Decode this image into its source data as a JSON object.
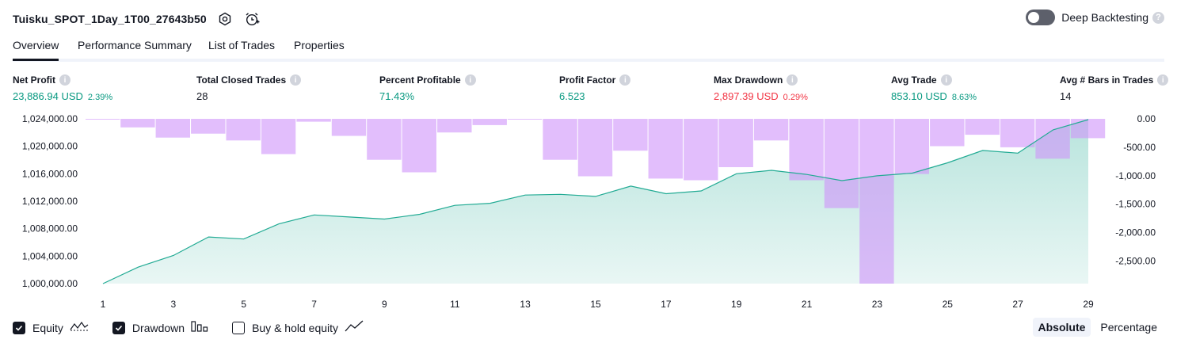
{
  "header": {
    "strategy_name": "Tuisku_SPOT_1Day_1T00_27643b50",
    "settings_icon": "gear-icon",
    "alert_icon": "alarm-clock-plus-icon",
    "deep_backtesting_label": "Deep Backtesting",
    "deep_backtesting_enabled": false
  },
  "tabs": [
    {
      "label": "Overview",
      "active": true
    },
    {
      "label": "Performance Summary",
      "active": false
    },
    {
      "label": "List of Trades",
      "active": false
    },
    {
      "label": "Properties",
      "active": false
    }
  ],
  "metrics": [
    {
      "label": "Net Profit",
      "value": "23,886.94 USD",
      "pct": "2.39%",
      "tone": "pos"
    },
    {
      "label": "Total Closed Trades",
      "value": "28",
      "pct": "",
      "tone": "plain"
    },
    {
      "label": "Percent Profitable",
      "value": "71.43%",
      "pct": "",
      "tone": "pos"
    },
    {
      "label": "Profit Factor",
      "value": "6.523",
      "pct": "",
      "tone": "pos"
    },
    {
      "label": "Max Drawdown",
      "value": "2,897.39 USD",
      "pct": "0.29%",
      "tone": "neg"
    },
    {
      "label": "Avg Trade",
      "value": "853.10 USD",
      "pct": "8.63%",
      "tone": "pos"
    },
    {
      "label": "Avg # Bars in Trades",
      "value": "14",
      "pct": "",
      "tone": "plain"
    }
  ],
  "colors": {
    "positive": "#089981",
    "negative": "#f23645",
    "equity_line": "#22ab94",
    "drawdown_bar": "#ce93fa"
  },
  "chart_data": {
    "type": "line",
    "x": [
      1,
      2,
      3,
      4,
      5,
      6,
      7,
      8,
      9,
      10,
      11,
      12,
      13,
      14,
      15,
      16,
      17,
      18,
      19,
      20,
      21,
      22,
      23,
      24,
      25,
      26,
      27,
      28,
      29
    ],
    "x_tick_labels": [
      "1",
      "3",
      "5",
      "7",
      "9",
      "11",
      "13",
      "15",
      "17",
      "19",
      "21",
      "23",
      "25",
      "27",
      "29"
    ],
    "left_axis": {
      "ticks": [
        "1,000,000.00",
        "1,004,000.00",
        "1,008,000.00",
        "1,012,000.00",
        "1,016,000.00",
        "1,020,000.00",
        "1,024,000.00"
      ],
      "range": [
        1000000,
        1024000
      ]
    },
    "right_axis": {
      "ticks": [
        "0.00",
        "-500.00",
        "-1,000.00",
        "-1,500.00",
        "-2,000.00",
        "-2,500.00"
      ],
      "range": [
        -2897.39,
        0
      ]
    },
    "series": [
      {
        "name": "Equity",
        "kind": "area-line",
        "axis": "left",
        "values": [
          1000000,
          1002400,
          1004100,
          1006800,
          1006500,
          1008700,
          1010000,
          1009700,
          1009400,
          1010100,
          1011400,
          1011700,
          1012900,
          1013000,
          1012700,
          1014200,
          1013100,
          1013500,
          1016000,
          1016500,
          1015900,
          1015000,
          1015700,
          1016100,
          1017600,
          1019400,
          1019000,
          1022400,
          1023886.94
        ]
      },
      {
        "name": "Drawdown",
        "kind": "bar",
        "axis": "right",
        "values": [
          0,
          -150,
          -330,
          -260,
          -380,
          -620,
          -50,
          -300,
          -720,
          -940,
          -240,
          -110,
          0,
          -720,
          -1010,
          -560,
          -1050,
          -1080,
          -850,
          -380,
          -1080,
          -1570,
          -2897.39,
          -970,
          -480,
          -280,
          -500,
          -700,
          -340
        ]
      }
    ],
    "legend": [
      {
        "label": "Equity",
        "checked": true,
        "icon": "equity-line-icon"
      },
      {
        "label": "Drawdown",
        "checked": true,
        "icon": "drawdown-bars-icon"
      },
      {
        "label": "Buy & hold equity",
        "checked": false,
        "icon": "trend-line-icon"
      }
    ]
  },
  "view_mode": {
    "options": [
      "Absolute",
      "Percentage"
    ],
    "selected": "Absolute"
  }
}
